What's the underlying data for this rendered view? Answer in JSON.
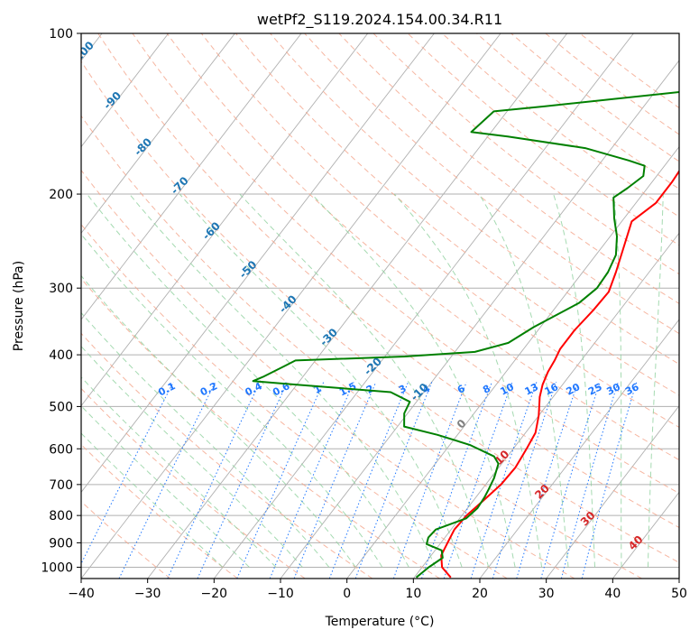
{
  "chart_data": {
    "type": "line",
    "title": "wetPf2_S119.2024.154.00.34.R11",
    "xlabel": "Temperature (°C)",
    "ylabel": "Pressure (hPa)",
    "xlim": [
      -40,
      50
    ],
    "ylim": [
      1050,
      100
    ],
    "y_scale": "log",
    "grid": true,
    "x_ticks": [
      -40,
      -30,
      -20,
      -10,
      0,
      10,
      20,
      30,
      40,
      50
    ],
    "y_ticks": [
      100,
      200,
      300,
      400,
      500,
      600,
      700,
      800,
      900,
      1000
    ],
    "series": [
      {
        "color": "#ff0000",
        "points": [
          [
            15.5,
            1045
          ],
          [
            13,
            1000
          ],
          [
            11.5,
            950
          ],
          [
            11,
            900
          ],
          [
            10.5,
            850
          ],
          [
            10.7,
            800
          ],
          [
            11.5,
            750
          ],
          [
            12.3,
            700
          ],
          [
            12.5,
            650
          ],
          [
            12,
            600
          ],
          [
            11.5,
            560
          ],
          [
            10,
            520
          ],
          [
            8,
            480
          ],
          [
            7,
            455
          ],
          [
            6.3,
            430
          ],
          [
            6,
            410
          ],
          [
            5.5,
            390
          ],
          [
            5.5,
            360
          ],
          [
            6,
            330
          ],
          [
            6.2,
            305
          ],
          [
            5,
            280
          ],
          [
            3.5,
            255
          ],
          [
            1.5,
            225
          ],
          [
            3,
            208
          ],
          [
            3,
            190
          ],
          [
            2.8,
            180
          ],
          [
            6.5,
            160
          ],
          [
            10,
            145
          ],
          [
            12.5,
            132
          ],
          [
            12.8,
            126
          ],
          [
            14,
            118
          ],
          [
            17,
            110
          ],
          [
            20,
            100
          ]
        ]
      },
      {
        "color": "#008000",
        "points": [
          [
            10.3,
            1045
          ],
          [
            11,
            1000
          ],
          [
            12,
            960
          ],
          [
            11,
            930
          ],
          [
            8,
            905
          ],
          [
            7.5,
            880
          ],
          [
            7.7,
            850
          ],
          [
            11,
            810
          ],
          [
            11.5,
            775
          ],
          [
            11.3,
            740
          ],
          [
            11,
            715
          ],
          [
            10.5,
            680
          ],
          [
            9.5,
            640
          ],
          [
            8,
            620
          ],
          [
            3,
            590
          ],
          [
            -3,
            565
          ],
          [
            -9,
            545
          ],
          [
            -10.5,
            515
          ],
          [
            -11,
            490
          ],
          [
            -15,
            470
          ],
          [
            -30,
            455
          ],
          [
            -37,
            448
          ],
          [
            -36,
            440
          ],
          [
            -34,
            420
          ],
          [
            -33,
            410
          ],
          [
            -17,
            403
          ],
          [
            -7,
            395
          ],
          [
            -3,
            380
          ],
          [
            -1,
            355
          ],
          [
            3,
            320
          ],
          [
            4,
            300
          ],
          [
            3.8,
            280
          ],
          [
            3,
            260
          ],
          [
            1,
            240
          ],
          [
            -1.5,
            222
          ],
          [
            -4,
            203
          ],
          [
            -3,
            195
          ],
          [
            -2,
            185
          ],
          [
            -3,
            177
          ],
          [
            -6,
            173
          ],
          [
            -14,
            164
          ],
          [
            -27,
            156
          ],
          [
            -33,
            153
          ],
          [
            -32,
            140
          ],
          [
            -25,
            137
          ],
          [
            -4.5,
            128
          ],
          [
            -4,
            124
          ],
          [
            -4,
            118
          ],
          [
            -3.5,
            108
          ],
          [
            -1.5,
            100
          ]
        ]
      }
    ],
    "mixing_ratio_labels": [
      "0.1",
      "0.2",
      "0.4",
      "0.6",
      "1",
      "1.5",
      "2",
      "3",
      "4",
      "6",
      "8",
      "10",
      "13",
      "16",
      "20",
      "25",
      "30",
      "36"
    ],
    "dry_adiabat_labels": [
      "-100",
      "-90",
      "-80",
      "-70",
      "-60",
      "-50",
      "-40",
      "-30",
      "-20",
      "-10",
      "0",
      "10",
      "20",
      "30",
      "40"
    ],
    "colors": {
      "temperature": "#ff0000",
      "dewpoint": "#008000",
      "isotherm": "#b0b0b0",
      "dry_adiabat": "#f4a48a",
      "moist_adiabat": "#8fd19e",
      "mixing_ratio": "#1f77ff",
      "label_blue": "#1f77b4",
      "label_red": "#d62728",
      "label_gray": "#808080"
    }
  }
}
